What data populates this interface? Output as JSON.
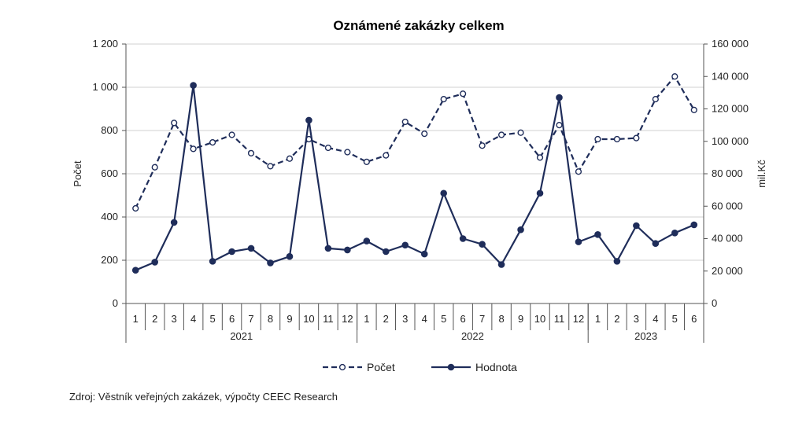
{
  "chart_data": {
    "type": "line",
    "title": "Oznámené zakázky celkem",
    "ylabel_left": "Počet",
    "ylabel_right": "mil.Kč",
    "ylim_left": [
      0,
      1200
    ],
    "ylim_right": [
      0,
      160000
    ],
    "yticks_left": [
      "0",
      "200",
      "400",
      "600",
      "800",
      "1 000",
      "1 200"
    ],
    "yticks_right": [
      "0",
      "20 000",
      "40 000",
      "60 000",
      "80 000",
      "100 000",
      "120 000",
      "140 000",
      "160 000"
    ],
    "categories": [
      "1",
      "2",
      "3",
      "4",
      "5",
      "6",
      "7",
      "8",
      "9",
      "10",
      "11",
      "12",
      "1",
      "2",
      "3",
      "4",
      "5",
      "6",
      "7",
      "8",
      "9",
      "10",
      "11",
      "12",
      "1",
      "2",
      "3",
      "4",
      "5",
      "6"
    ],
    "year_groups": [
      {
        "label": "2021",
        "count": 12
      },
      {
        "label": "2022",
        "count": 12
      },
      {
        "label": "2023",
        "count": 6
      }
    ],
    "series": [
      {
        "name": "Počet",
        "axis": "left",
        "style": "dashed",
        "color": "#1f2d5a",
        "values": [
          440,
          630,
          835,
          715,
          745,
          780,
          695,
          635,
          670,
          760,
          720,
          700,
          655,
          685,
          840,
          785,
          945,
          970,
          730,
          780,
          790,
          675,
          825,
          610,
          760,
          760,
          765,
          945,
          1050,
          895
        ]
      },
      {
        "name": "Hodnota",
        "axis": "right",
        "style": "solid",
        "color": "#1f2d5a",
        "values": [
          20500,
          25500,
          50000,
          134500,
          26000,
          32000,
          34000,
          25000,
          29000,
          113000,
          34000,
          33000,
          38500,
          32000,
          36000,
          30500,
          68000,
          40000,
          36500,
          24000,
          45500,
          68000,
          127000,
          38000,
          42500,
          26000,
          48000,
          37000,
          43500,
          48500
        ]
      }
    ],
    "legend_position": "bottom",
    "grid": "horizontal"
  },
  "footer": {
    "source": "Zdroj: Věstník veřejných zakázek, výpočty CEEC Research"
  }
}
